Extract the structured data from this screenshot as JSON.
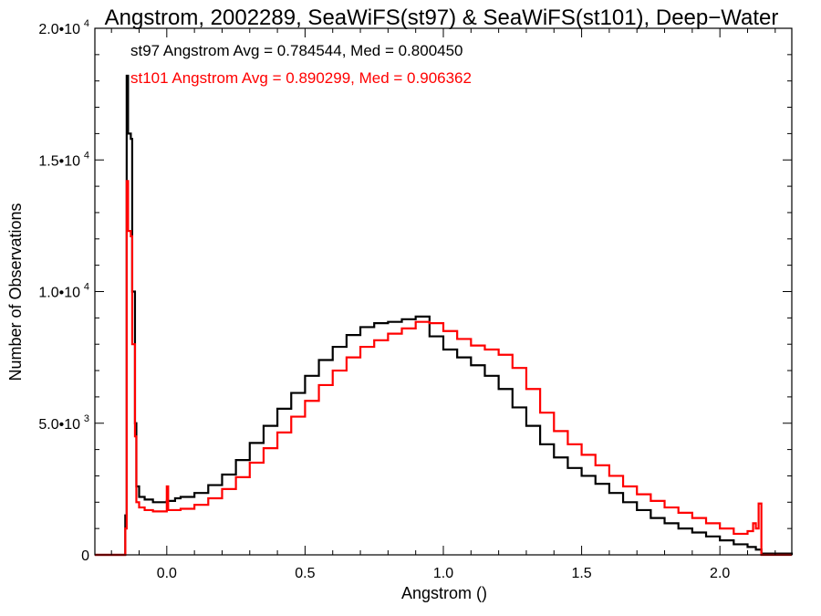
{
  "chart_data": {
    "type": "line",
    "step": true,
    "title": "Angstrom, 2002289, SeaWiFS(st97) & SeaWiFS(st101), Deep−Water",
    "xlabel": "Angstrom ()",
    "ylabel": "Number of Observations",
    "xlim": [
      -0.26,
      2.26
    ],
    "ylim": [
      0,
      20000
    ],
    "x_ticks": [
      {
        "value": 0.0,
        "label": "0.0"
      },
      {
        "value": 0.5,
        "label": "0.5"
      },
      {
        "value": 1.0,
        "label": "1.0"
      },
      {
        "value": 1.5,
        "label": "1.5"
      },
      {
        "value": 2.0,
        "label": "2.0"
      }
    ],
    "y_ticks": [
      {
        "value": 0,
        "mant": "0",
        "exp": ""
      },
      {
        "value": 5000,
        "mant": "5.0•10",
        "exp": "3"
      },
      {
        "value": 10000,
        "mant": "1.0•10",
        "exp": "4"
      },
      {
        "value": 15000,
        "mant": "1.5•10",
        "exp": "4"
      },
      {
        "value": 20000,
        "mant": "2.0•10",
        "exp": "4"
      }
    ],
    "grid": false,
    "annotations": [
      {
        "text": "st97 Angstrom Avg = 0.784544, Med = 0.800450",
        "color": "#000000"
      },
      {
        "text": "st101 Angstrom Avg = 0.890299, Med = 0.906362",
        "color": "#ff0000"
      }
    ],
    "series": [
      {
        "color": "#000000",
        "points": [
          [
            -0.26,
            0
          ],
          [
            -0.155,
            0
          ],
          [
            -0.15,
            1500
          ],
          [
            -0.145,
            18200
          ],
          [
            -0.14,
            16000
          ],
          [
            -0.13,
            15800
          ],
          [
            -0.125,
            10000
          ],
          [
            -0.115,
            5000
          ],
          [
            -0.11,
            2600
          ],
          [
            -0.1,
            2200
          ],
          [
            -0.08,
            2100
          ],
          [
            -0.05,
            2000
          ],
          [
            -0.02,
            2000
          ],
          [
            0.0,
            2050
          ],
          [
            0.03,
            2150
          ],
          [
            0.05,
            2200
          ],
          [
            0.1,
            2350
          ],
          [
            0.15,
            2650
          ],
          [
            0.2,
            3050
          ],
          [
            0.25,
            3600
          ],
          [
            0.3,
            4250
          ],
          [
            0.35,
            4900
          ],
          [
            0.4,
            5550
          ],
          [
            0.45,
            6150
          ],
          [
            0.5,
            6800
          ],
          [
            0.55,
            7400
          ],
          [
            0.6,
            7900
          ],
          [
            0.65,
            8350
          ],
          [
            0.7,
            8650
          ],
          [
            0.75,
            8800
          ],
          [
            0.8,
            8850
          ],
          [
            0.85,
            8950
          ],
          [
            0.9,
            9050
          ],
          [
            0.95,
            8300
          ],
          [
            1.0,
            7800
          ],
          [
            1.05,
            7500
          ],
          [
            1.1,
            7200
          ],
          [
            1.15,
            6800
          ],
          [
            1.2,
            6300
          ],
          [
            1.25,
            5600
          ],
          [
            1.3,
            4900
          ],
          [
            1.35,
            4200
          ],
          [
            1.4,
            3700
          ],
          [
            1.45,
            3300
          ],
          [
            1.5,
            3000
          ],
          [
            1.55,
            2700
          ],
          [
            1.6,
            2350
          ],
          [
            1.65,
            2000
          ],
          [
            1.7,
            1700
          ],
          [
            1.75,
            1400
          ],
          [
            1.8,
            1200
          ],
          [
            1.85,
            1000
          ],
          [
            1.9,
            850
          ],
          [
            1.95,
            700
          ],
          [
            2.0,
            550
          ],
          [
            2.05,
            400
          ],
          [
            2.1,
            300
          ],
          [
            2.13,
            200
          ],
          [
            2.15,
            50
          ],
          [
            2.26,
            0
          ]
        ]
      },
      {
        "color": "#ff0000",
        "points": [
          [
            -0.26,
            0
          ],
          [
            -0.155,
            0
          ],
          [
            -0.15,
            1000
          ],
          [
            -0.145,
            14200
          ],
          [
            -0.14,
            12300
          ],
          [
            -0.13,
            12100
          ],
          [
            -0.125,
            8000
          ],
          [
            -0.115,
            4500
          ],
          [
            -0.11,
            2000
          ],
          [
            -0.1,
            1800
          ],
          [
            -0.08,
            1700
          ],
          [
            -0.05,
            1650
          ],
          [
            -0.02,
            1650
          ],
          [
            0.0,
            2600
          ],
          [
            0.005,
            1700
          ],
          [
            0.05,
            1750
          ],
          [
            0.1,
            1900
          ],
          [
            0.15,
            2150
          ],
          [
            0.2,
            2500
          ],
          [
            0.25,
            2950
          ],
          [
            0.3,
            3500
          ],
          [
            0.35,
            4050
          ],
          [
            0.4,
            4650
          ],
          [
            0.45,
            5250
          ],
          [
            0.5,
            5850
          ],
          [
            0.55,
            6450
          ],
          [
            0.6,
            7000
          ],
          [
            0.65,
            7500
          ],
          [
            0.7,
            7900
          ],
          [
            0.75,
            8150
          ],
          [
            0.8,
            8400
          ],
          [
            0.85,
            8600
          ],
          [
            0.9,
            8850
          ],
          [
            0.95,
            8800
          ],
          [
            1.0,
            8500
          ],
          [
            1.05,
            8200
          ],
          [
            1.1,
            7950
          ],
          [
            1.15,
            7800
          ],
          [
            1.2,
            7600
          ],
          [
            1.25,
            7100
          ],
          [
            1.3,
            6300
          ],
          [
            1.35,
            5400
          ],
          [
            1.4,
            4700
          ],
          [
            1.45,
            4200
          ],
          [
            1.5,
            3800
          ],
          [
            1.55,
            3400
          ],
          [
            1.6,
            3000
          ],
          [
            1.65,
            2600
          ],
          [
            1.7,
            2300
          ],
          [
            1.75,
            2050
          ],
          [
            1.8,
            1800
          ],
          [
            1.85,
            1600
          ],
          [
            1.9,
            1400
          ],
          [
            1.95,
            1200
          ],
          [
            2.0,
            1000
          ],
          [
            2.05,
            800
          ],
          [
            2.1,
            900
          ],
          [
            2.12,
            1200
          ],
          [
            2.13,
            1000
          ],
          [
            2.14,
            1950
          ],
          [
            2.15,
            0
          ],
          [
            2.26,
            0
          ]
        ]
      }
    ]
  }
}
